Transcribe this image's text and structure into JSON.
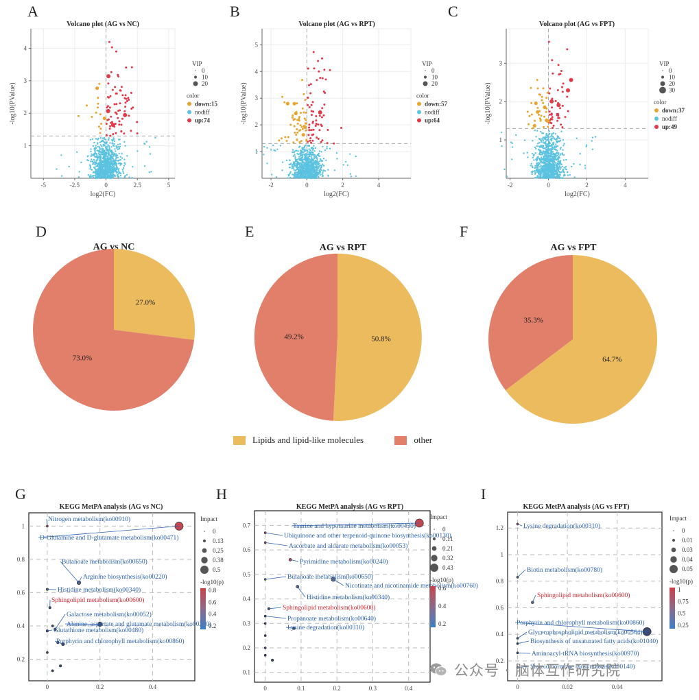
{
  "colors": {
    "down": "#E8A531",
    "nodiff": "#5BC2E0",
    "up": "#E03A4B",
    "lipid": "#EBBB5E",
    "other": "#E27F6B",
    "kegg_blue": "#2B62B0",
    "kegg_red": "#D7262F"
  },
  "volcano": [
    {
      "letter": "A",
      "title": "Volcano plot (AG vs NC)",
      "xlabel": "log2(FC)",
      "ylabel": "-log10(PValue)",
      "xticks": [
        "-5",
        "-2.5",
        "0",
        "2.5",
        "5"
      ],
      "yticks": [
        "1",
        "2",
        "3",
        "4"
      ],
      "legend": {
        "vip_title": "VIP",
        "vip_values": [
          "0",
          "10",
          "20"
        ],
        "color_title": "color",
        "down": "down:15",
        "nodiff": "nodiff",
        "up": "up:74"
      }
    },
    {
      "letter": "B",
      "title": "Volcano plot (AG vs RPT)",
      "xlabel": "log2(FC)",
      "ylabel": "-log10(PValue)",
      "xticks": [
        "-2",
        "0",
        "2",
        "4"
      ],
      "yticks": [
        "1",
        "2",
        "3",
        "4",
        "5"
      ],
      "legend": {
        "vip_title": "VIP",
        "vip_values": [
          "0",
          "10",
          "20"
        ],
        "color_title": "color",
        "down": "down:57",
        "nodiff": "nodiff",
        "up": "up:64"
      }
    },
    {
      "letter": "C",
      "title": "Volcano plot (AG vs FPT)",
      "xlabel": "log2(FC)",
      "ylabel": "-log10(PValue)",
      "xticks": [
        "-2",
        "0",
        "2",
        "4"
      ],
      "yticks": [
        "1",
        "2",
        "3"
      ],
      "legend": {
        "vip_title": "VIP",
        "vip_values": [
          "0",
          "10",
          "20",
          "30"
        ],
        "color_title": "color",
        "down": "down:37",
        "nodiff": "nodiff",
        "up": "up:49"
      }
    }
  ],
  "pies": [
    {
      "letter": "D",
      "title": "AG vs NC",
      "lipid": "27.0%",
      "other": "73.0%"
    },
    {
      "letter": "E",
      "title": "AG vs RPT",
      "lipid": "50.8%",
      "other": "49.2%"
    },
    {
      "letter": "F",
      "title": "AG vs FPT",
      "lipid": "64.7%",
      "other": "35.3%"
    }
  ],
  "pie_legend": {
    "lipid": "Lipids and lipid-like molecules",
    "other": "other"
  },
  "kegg": [
    {
      "letter": "G",
      "title": "KEGG MetPA analysis (AG vs NC)",
      "xticks": [
        "0",
        "0.2",
        "0.4"
      ],
      "yticks": [
        "0.2",
        "0.4",
        "0.6",
        "0.8",
        "1"
      ],
      "impact_title": "Impact",
      "impact_values": [
        "0",
        "0.13",
        "0.25",
        "0.38",
        "0.5"
      ],
      "logp_title": "-log10(p)",
      "logp_values": [
        "0.8",
        "0.6",
        "0.4",
        "0.2"
      ],
      "labels": [
        "Nitrogen metabolism(ko00910)",
        "D-Glutamine and D-glutamate metabolism(ko00471)",
        "Butanoate metabolism(ko00650)",
        "Arginine biosynthesis(ko00220)",
        "Histidine metabolism(ko00340)",
        "Sphingolipid metabolism(ko00600)",
        "Galactose metabolism(ko00052)",
        "Alanine, aspartate and glutamate metabolism(ko00250)",
        "Glutathione metabolism(ko00480)",
        "Porphyrin and chlorophyll metabolism(ko00860)"
      ]
    },
    {
      "letter": "H",
      "title": "KEGG MetPA analysis (AG vs RPT)",
      "xticks": [
        "0",
        "0.1",
        "0.2",
        "0.3",
        "0.4"
      ],
      "yticks": [
        "0.1",
        "0.2",
        "0.3",
        "0.4",
        "0.5",
        "0.6",
        "0.7"
      ],
      "impact_title": "Impact",
      "impact_values": [
        "0",
        "0.11",
        "0.21",
        "0.32",
        "0.43"
      ],
      "logp_title": "-log10(p)",
      "logp_values": [
        "0.6",
        "0.4",
        "0.2"
      ],
      "labels": [
        "Taurine and hypotaurine metabolism(ko00430)",
        "Ubiquinone and other terpenoid-quinone biosynthesis(ko00130)",
        "Ascorbate and aldarate metabolism(ko00053)",
        "Pyrimidine metabolism(ko00240)",
        "Butanoate metabolism(ko00650)",
        "Nicotinate and nicotinamide metabolism(ko00760)",
        "Histidine metabolism(ko00340)",
        "Sphingolipid metabolism(ko00600)",
        "Propanoate metabolism(ko00640)",
        "Lysine degradation(ko00310)"
      ]
    },
    {
      "letter": "I",
      "title": "KEGG MetPA analysis (AG vs FPT)",
      "xticks": [
        "0",
        "0.02",
        "0.04"
      ],
      "yticks": [
        "0.2",
        "0.4",
        "0.6",
        "0.8",
        "1",
        "1.2"
      ],
      "impact_title": "Impact",
      "impact_values": [
        "0",
        "0.01",
        "0.03",
        "0.04",
        "0.05"
      ],
      "logp_title": "-log10(p)",
      "logp_values": [
        "1",
        "0.75",
        "0.5",
        "0.25"
      ],
      "labels": [
        "Lysine degradation(ko00310)",
        "Biotin metabolism(ko00780)",
        "Sphingolipid metabolism(ko00600)",
        "Porphyrin and chlorophyll metabolism(ko00860)",
        "Glycerophospholipid metabolism(ko00564)",
        "Biosynthesis of unsaturated fatty acids(ko01040)",
        "Aminoacyl-tRNA biosynthesis(ko00970)",
        "Steroid hormone biosynthesis(ko00140)"
      ]
    }
  ],
  "watermark": "公众号 · 脑体互作研究院",
  "chart_data": [
    {
      "type": "scatter",
      "title": "Volcano plot (AG vs NC)",
      "xlabel": "log2(FC)",
      "ylabel": "-log10(PValue)",
      "xlim": [
        -6,
        5.5
      ],
      "ylim": [
        0,
        4.6
      ],
      "series": [
        {
          "name": "down:15",
          "count": 15
        },
        {
          "name": "nodiff"
        },
        {
          "name": "up:74",
          "count": 74
        }
      ]
    },
    {
      "type": "scatter",
      "title": "Volcano plot (AG vs RPT)",
      "xlabel": "log2(FC)",
      "ylabel": "-log10(PValue)",
      "xlim": [
        -2.5,
        5.8
      ],
      "ylim": [
        0,
        5.6
      ],
      "series": [
        {
          "name": "down:57",
          "count": 57
        },
        {
          "name": "nodiff"
        },
        {
          "name": "up:64",
          "count": 64
        }
      ]
    },
    {
      "type": "scatter",
      "title": "Volcano plot (AG vs FPT)",
      "xlabel": "log2(FC)",
      "ylabel": "-log10(PValue)",
      "xlim": [
        -2.2,
        5.2
      ],
      "ylim": [
        0,
        3.9
      ],
      "series": [
        {
          "name": "down:37",
          "count": 37
        },
        {
          "name": "nodiff"
        },
        {
          "name": "up:49",
          "count": 49
        }
      ]
    },
    {
      "type": "pie",
      "title": "AG vs NC",
      "categories": [
        "Lipids and lipid-like molecules",
        "other"
      ],
      "values": [
        27.0,
        73.0
      ]
    },
    {
      "type": "pie",
      "title": "AG vs RPT",
      "categories": [
        "Lipids and lipid-like molecules",
        "other"
      ],
      "values": [
        50.8,
        49.2
      ]
    },
    {
      "type": "pie",
      "title": "AG vs FPT",
      "categories": [
        "Lipids and lipid-like molecules",
        "other"
      ],
      "values": [
        64.7,
        35.3
      ]
    },
    {
      "type": "scatter",
      "title": "KEGG MetPA analysis (AG vs NC)",
      "xlim": [
        -0.07,
        0.56
      ],
      "ylim": [
        0.07,
        1.08
      ],
      "points": [
        {
          "label": "Nitrogen metabolism(ko00910)",
          "x": 0.0,
          "y": 1.0,
          "impact": 0.0
        },
        {
          "label": "D-Glutamine and D-glutamate metabolism(ko00471)",
          "x": 0.5,
          "y": 1.0,
          "impact": 0.5
        },
        {
          "label": "Butanoate metabolism(ko00650)",
          "x": 0.12,
          "y": 0.66,
          "impact": 0.13
        },
        {
          "label": "Arginine biosynthesis(ko00220)",
          "x": 0.12,
          "y": 0.66,
          "impact": 0.12
        },
        {
          "label": "Histidine metabolism(ko00340)",
          "x": 0.0,
          "y": 0.62,
          "impact": 0.02
        },
        {
          "label": "Sphingolipid metabolism(ko00600)",
          "x": 0.01,
          "y": 0.51,
          "impact": 0.02
        },
        {
          "label": "Galactose metabolism(ko00052)",
          "x": 0.03,
          "y": 0.38,
          "impact": 0.05
        },
        {
          "label": "Alanine, aspartate and glutamate metabolism(ko00250)",
          "x": 0.2,
          "y": 0.41,
          "impact": 0.2
        },
        {
          "label": "Glutathione metabolism(ko00480)",
          "x": 0.0,
          "y": 0.37,
          "impact": 0.02
        },
        {
          "label": "Porphyrin and chlorophyll metabolism(ko00860)",
          "x": 0.06,
          "y": 0.29,
          "impact": 0.08
        },
        {
          "label": "",
          "x": 0.0,
          "y": 0.24,
          "impact": 0.0
        },
        {
          "label": "",
          "x": 0.05,
          "y": 0.16,
          "impact": 0.02
        },
        {
          "label": "",
          "x": 0.02,
          "y": 0.13,
          "impact": 0.01
        },
        {
          "label": "",
          "x": 0.04,
          "y": 0.3,
          "impact": 0.03
        },
        {
          "label": "",
          "x": 0.02,
          "y": 0.4,
          "impact": 0.01
        }
      ]
    },
    {
      "type": "scatter",
      "title": "KEGG MetPA analysis (AG vs RPT)",
      "xlim": [
        -0.03,
        0.46
      ],
      "ylim": [
        0.06,
        0.76
      ],
      "points": [
        {
          "label": "Taurine and hypotaurine metabolism(ko00430)",
          "x": 0.43,
          "y": 0.71,
          "impact": 0.43
        },
        {
          "label": "Ubiquinone and other terpenoid-quinone biosynthesis(ko00130)",
          "x": 0.0,
          "y": 0.67,
          "impact": 0.0
        },
        {
          "label": "Ascorbate and aldarate metabolism(ko00053)",
          "x": 0.0,
          "y": 0.63,
          "impact": 0.0
        },
        {
          "label": "Pyrimidine metabolism(ko00240)",
          "x": 0.07,
          "y": 0.56,
          "impact": 0.05
        },
        {
          "label": "Butanoate metabolism(ko00650)",
          "x": 0.0,
          "y": 0.48,
          "impact": 0.0
        },
        {
          "label": "Nicotinate and nicotinamide metabolism(ko00760)",
          "x": 0.19,
          "y": 0.48,
          "impact": 0.15
        },
        {
          "label": "Histidine metabolism(ko00340)",
          "x": 0.09,
          "y": 0.45,
          "impact": 0.06
        },
        {
          "label": "Sphingolipid metabolism(ko00600)",
          "x": 0.01,
          "y": 0.36,
          "impact": 0.02
        },
        {
          "label": "Propanoate metabolism(ko00640)",
          "x": 0.0,
          "y": 0.33,
          "impact": 0.0
        },
        {
          "label": "Lysine degradation(ko00310)",
          "x": 0.08,
          "y": 0.28,
          "impact": 0.05
        },
        {
          "label": "",
          "x": 0.0,
          "y": 0.3,
          "impact": 0.0
        },
        {
          "label": "",
          "x": 0.0,
          "y": 0.25,
          "impact": 0.0
        },
        {
          "label": "",
          "x": 0.0,
          "y": 0.2,
          "impact": 0.0
        },
        {
          "label": "",
          "x": 0.0,
          "y": 0.17,
          "impact": 0.0
        },
        {
          "label": "",
          "x": 0.02,
          "y": 0.15,
          "impact": 0.02
        }
      ]
    },
    {
      "type": "scatter",
      "title": "KEGG MetPA analysis (AG vs FPT)",
      "xlim": [
        -0.004,
        0.058
      ],
      "ylim": [
        0.05,
        1.32
      ],
      "points": [
        {
          "label": "Lysine degradation(ko00310)",
          "x": 0.0,
          "y": 1.23,
          "impact": 0.0
        },
        {
          "label": "Biotin metabolism(ko00780)",
          "x": 0.0,
          "y": 0.83,
          "impact": 0.0
        },
        {
          "label": "Sphingolipid metabolism(ko00600)",
          "x": 0.006,
          "y": 0.64,
          "impact": 0.005
        },
        {
          "label": "Porphyrin and chlorophyll metabolism(ko00860)",
          "x": 0.052,
          "y": 0.42,
          "impact": 0.05
        },
        {
          "label": "Glycerophospholipid metabolism(ko00564)",
          "x": 0.0,
          "y": 0.37,
          "impact": 0.0
        },
        {
          "label": "Biosynthesis of unsaturated fatty acids(ko01040)",
          "x": 0.0,
          "y": 0.33,
          "impact": 0.0
        },
        {
          "label": "Aminoacyl-tRNA biosynthesis(ko00970)",
          "x": 0.0,
          "y": 0.26,
          "impact": 0.0
        },
        {
          "label": "Steroid hormone biosynthesis(ko00140)",
          "x": 0.0,
          "y": 0.15,
          "impact": 0.0
        }
      ]
    }
  ]
}
